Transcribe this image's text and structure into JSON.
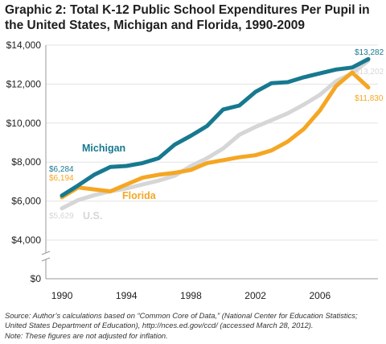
{
  "chart_data": {
    "type": "line",
    "title": "Graphic 2: Total K-12 Public School Expenditures Per Pupil in the United States, Michigan and Florida, 1990-2009",
    "x": [
      1990,
      1991,
      1992,
      1993,
      1994,
      1995,
      1996,
      1997,
      1998,
      1999,
      2000,
      2001,
      2002,
      2003,
      2004,
      2005,
      2006,
      2007,
      2008,
      2009
    ],
    "x_range": [
      1989,
      2009.6
    ],
    "x_ticks": [
      "1990",
      "1994",
      "1998",
      "2002",
      "2006"
    ],
    "x_tick_values": [
      1990,
      1994,
      1998,
      2002,
      2006
    ],
    "y_range": [
      0,
      14000
    ],
    "y_axis_break": true,
    "y_ticks": [
      "$0",
      "$4,000",
      "$6,000",
      "$8,000",
      "$10,000",
      "$12,000",
      "$14,000"
    ],
    "y_tick_values": [
      0,
      4000,
      6000,
      8000,
      10000,
      12000,
      14000
    ],
    "grid": true,
    "legend": "inline labels",
    "series": [
      {
        "name": "U.S.",
        "color": "#d6d6d6",
        "values": [
          5629,
          6050,
          6300,
          6500,
          6650,
          6850,
          7050,
          7300,
          7800,
          8200,
          8700,
          9400,
          9800,
          10150,
          10500,
          10950,
          11450,
          12150,
          12550,
          13202
        ],
        "start_label": "$5,629",
        "end_label": "$13,202"
      },
      {
        "name": "Florida",
        "color": "#f5a623",
        "values": [
          6194,
          6700,
          6600,
          6500,
          6850,
          7200,
          7350,
          7450,
          7600,
          7950,
          8100,
          8250,
          8350,
          8600,
          9050,
          9700,
          10650,
          11900,
          12600,
          11830
        ],
        "start_label": "$6,194",
        "end_label": "$11,830"
      },
      {
        "name": "Michigan",
        "color": "#17798f",
        "values": [
          6284,
          6800,
          7350,
          7750,
          7800,
          7950,
          8200,
          8900,
          9350,
          9850,
          10700,
          10900,
          11600,
          12050,
          12100,
          12350,
          12550,
          12750,
          12850,
          13282
        ],
        "start_label": "$6,284",
        "end_label": "$13,282"
      }
    ],
    "source": [
      "Source:  Author’s calculations based on “Common Core of Data,” (National Center for Education Statistics;",
      "United States Department of Education), http://nces.ed.gov/ccd/ (accessed March 28, 2012).",
      "Note: These figures are not adjusted for inflation."
    ]
  }
}
